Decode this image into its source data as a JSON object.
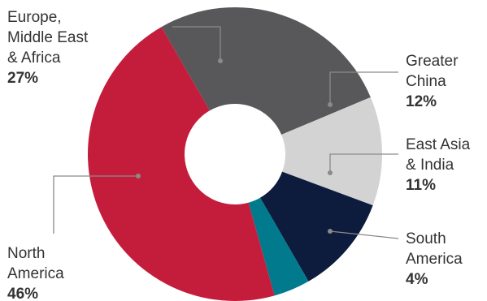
{
  "chart_data": {
    "type": "pie",
    "title": "",
    "series": [
      {
        "name": "",
        "values": [
          {
            "label": [
              "Europe,",
              "Middle East",
              "& Africa"
            ],
            "pct_label": "27%",
            "value": 27,
            "color": "#58585a"
          },
          {
            "label": [
              "Greater",
              "China"
            ],
            "pct_label": "12%",
            "value": 12,
            "color": "#d3d3d4"
          },
          {
            "label": [
              "East Asia",
              "& India"
            ],
            "pct_label": "11%",
            "value": 11,
            "color": "#0d1b3d"
          },
          {
            "label": [
              "South",
              "America"
            ],
            "pct_label": "4%",
            "value": 4,
            "color": "#007a8c"
          },
          {
            "label": [
              "North",
              "America"
            ],
            "pct_label": "46%",
            "value": 46,
            "color": "#c41d3c"
          }
        ]
      }
    ],
    "style": "donut",
    "legend": "none",
    "label_position": "outside with leader lines"
  }
}
